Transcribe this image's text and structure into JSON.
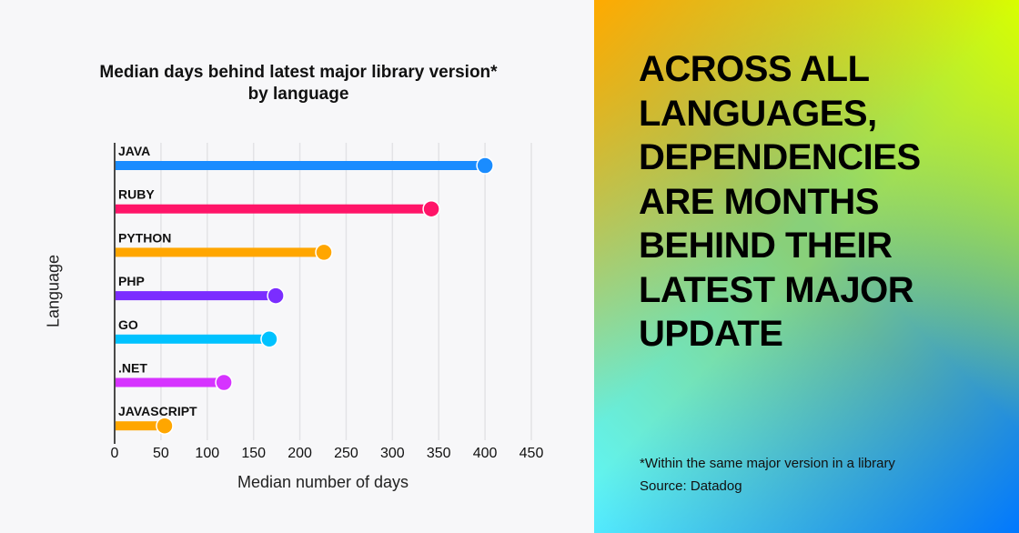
{
  "chart_data": {
    "type": "bar",
    "orientation": "horizontal",
    "style": "lollipop",
    "title": "Median days behind latest major library version* by language",
    "xlabel": "Median number of days",
    "ylabel": "Language",
    "xlim": [
      0,
      450
    ],
    "xticks": [
      "0",
      "50",
      "100",
      "150",
      "200",
      "250",
      "300",
      "350",
      "400",
      "450"
    ],
    "grid": true,
    "categories": [
      "JAVA",
      "RUBY",
      "PYTHON",
      "PHP",
      "GO",
      ".NET",
      "JAVASCRIPT"
    ],
    "values": [
      400,
      342,
      226,
      174,
      167,
      118,
      54
    ],
    "colors": [
      "#1a8cff",
      "#ff1468",
      "#ffa600",
      "#7b2dff",
      "#00c2ff",
      "#d633ff",
      "#ffa600"
    ]
  },
  "headline": [
    "ACROSS ALL",
    "LANGUAGES,",
    "DEPENDENCIES",
    "ARE MONTHS",
    "BEHIND THEIR",
    "LATEST MAJOR",
    "UPDATE"
  ],
  "footnote": "*Within the same major version in a library",
  "source": "Source: Datadog"
}
